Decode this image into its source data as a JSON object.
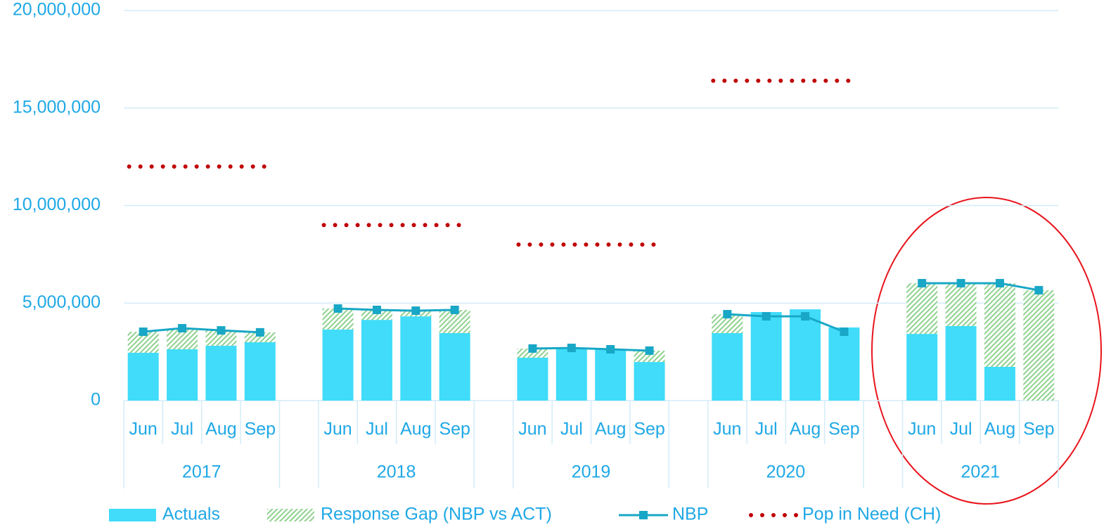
{
  "chart_data": {
    "type": "bar",
    "categories": [
      "Jun",
      "Jul",
      "Aug",
      "Sep",
      null,
      "Jun",
      "Jul",
      "Aug",
      "Sep",
      null,
      "Jun",
      "Jul",
      "Aug",
      "Sep",
      null,
      "Jun",
      "Jul",
      "Aug",
      "Sep",
      null,
      "Jun",
      "Jul",
      "Aug",
      "Sep"
    ],
    "groups": [
      "2017",
      "2018",
      "2019",
      "2020",
      "2021"
    ],
    "ylim": [
      0,
      20000000
    ],
    "yticks": [
      {
        "value": 0,
        "label": "0"
      },
      {
        "value": 5000000,
        "label": "5,000,000"
      },
      {
        "value": 10000000,
        "label": "10,000,000"
      },
      {
        "value": 15000000,
        "label": "15,000,000"
      },
      {
        "value": 20000000,
        "label": "20,000,000"
      }
    ],
    "grid": true,
    "legend": "bottom",
    "series": [
      {
        "name": "Actuals",
        "type": "bar",
        "color": "#40dcf9",
        "values": [
          2450000,
          2630000,
          2810000,
          2990000,
          null,
          3640000,
          4140000,
          4320000,
          3460000,
          null,
          2200000,
          2670000,
          2630000,
          1980000,
          null,
          3460000,
          4540000,
          4680000,
          3750000,
          null,
          3420000,
          3820000,
          1730000,
          0
        ]
      },
      {
        "name": "Response Gap (NBP vs ACT)",
        "type": "bar",
        "color": "#8fd18f",
        "values": [
          1080000,
          1080000,
          790000,
          510000,
          null,
          1080000,
          510000,
          290000,
          1190000,
          null,
          470000,
          30000,
          0,
          580000,
          null,
          970000,
          0,
          0,
          0,
          null,
          2600000,
          2200000,
          4290000,
          5660000
        ]
      },
      {
        "name": "NBP",
        "type": "line",
        "marker": "square",
        "color": "#18a7c6",
        "values": [
          3530000,
          3710000,
          3600000,
          3500000,
          null,
          4720000,
          4650000,
          4610000,
          4650000,
          null,
          2670000,
          2700000,
          2630000,
          2560000,
          null,
          4430000,
          4320000,
          4320000,
          3530000,
          null,
          6020000,
          6020000,
          6020000,
          5660000
        ]
      },
      {
        "name": "Pop in Need (CH)",
        "type": "line",
        "dash": "dotted",
        "color": "#c00000",
        "values": [
          12000000,
          12000000,
          12000000,
          12000000,
          null,
          9000000,
          9000000,
          9000000,
          9000000,
          null,
          8000000,
          8000000,
          8000000,
          8000000,
          null,
          16400000,
          16400000,
          16400000,
          16400000,
          null,
          null,
          null,
          null,
          null
        ]
      }
    ]
  }
}
